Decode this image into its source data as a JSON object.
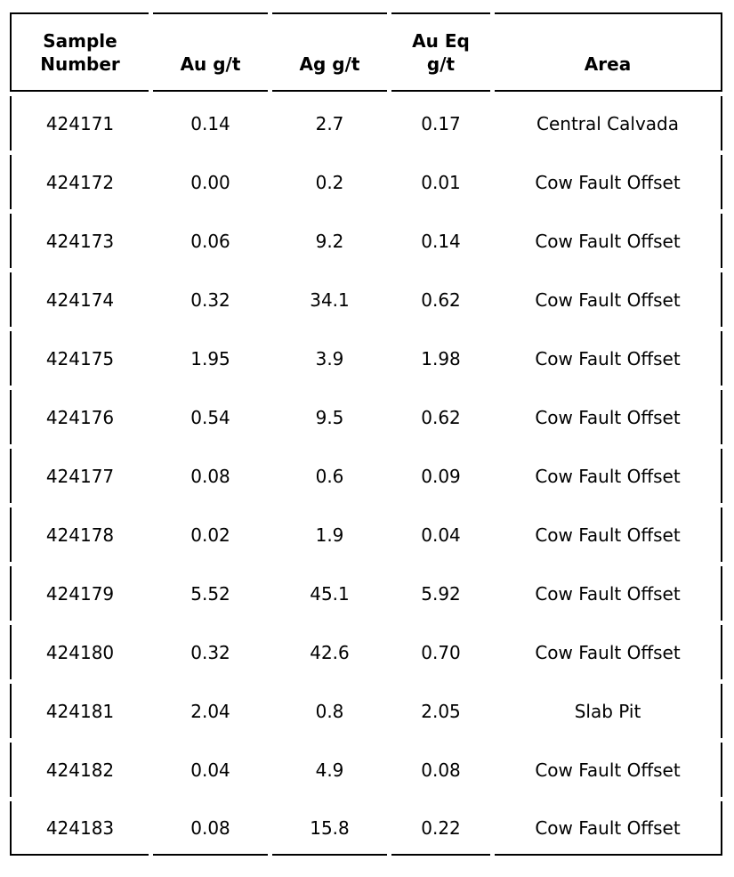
{
  "colors": {
    "text": "#000000",
    "border": "#000000",
    "background": "#ffffff"
  },
  "table": {
    "columns": [
      {
        "key": "sample_number",
        "label_lines": [
          "Sample",
          "Number"
        ]
      },
      {
        "key": "au_gt",
        "label_lines": [
          "Au g/t"
        ]
      },
      {
        "key": "ag_gt",
        "label_lines": [
          "Ag g/t"
        ]
      },
      {
        "key": "au_eq_gt",
        "label_lines": [
          "Au Eq",
          "g/t"
        ]
      },
      {
        "key": "area",
        "label_lines": [
          "Area"
        ]
      }
    ],
    "rows": [
      {
        "sample_number": "424171",
        "au_gt": "0.14",
        "ag_gt": "2.7",
        "au_eq_gt": "0.17",
        "area": "Central Calvada"
      },
      {
        "sample_number": "424172",
        "au_gt": "0.00",
        "ag_gt": "0.2",
        "au_eq_gt": "0.01",
        "area": "Cow Fault Offset"
      },
      {
        "sample_number": "424173",
        "au_gt": "0.06",
        "ag_gt": "9.2",
        "au_eq_gt": "0.14",
        "area": "Cow Fault Offset"
      },
      {
        "sample_number": "424174",
        "au_gt": "0.32",
        "ag_gt": "34.1",
        "au_eq_gt": "0.62",
        "area": "Cow Fault Offset"
      },
      {
        "sample_number": "424175",
        "au_gt": "1.95",
        "ag_gt": "3.9",
        "au_eq_gt": "1.98",
        "area": "Cow Fault Offset"
      },
      {
        "sample_number": "424176",
        "au_gt": "0.54",
        "ag_gt": "9.5",
        "au_eq_gt": "0.62",
        "area": "Cow Fault Offset"
      },
      {
        "sample_number": "424177",
        "au_gt": "0.08",
        "ag_gt": "0.6",
        "au_eq_gt": "0.09",
        "area": "Cow Fault Offset"
      },
      {
        "sample_number": "424178",
        "au_gt": "0.02",
        "ag_gt": "1.9",
        "au_eq_gt": "0.04",
        "area": "Cow Fault Offset"
      },
      {
        "sample_number": "424179",
        "au_gt": "5.52",
        "ag_gt": "45.1",
        "au_eq_gt": "5.92",
        "area": "Cow Fault Offset"
      },
      {
        "sample_number": "424180",
        "au_gt": "0.32",
        "ag_gt": "42.6",
        "au_eq_gt": "0.70",
        "area": "Cow Fault Offset"
      },
      {
        "sample_number": "424181",
        "au_gt": "2.04",
        "ag_gt": "0.8",
        "au_eq_gt": "2.05",
        "area": "Slab Pit"
      },
      {
        "sample_number": "424182",
        "au_gt": "0.04",
        "ag_gt": "4.9",
        "au_eq_gt": "0.08",
        "area": "Cow Fault Offset"
      },
      {
        "sample_number": "424183",
        "au_gt": "0.08",
        "ag_gt": "15.8",
        "au_eq_gt": "0.22",
        "area": "Cow Fault Offset"
      }
    ]
  }
}
